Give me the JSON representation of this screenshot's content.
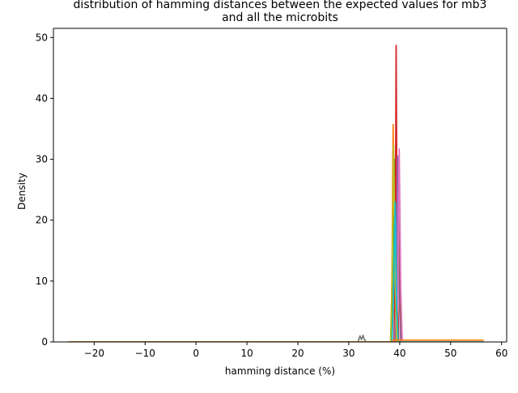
{
  "chart_data": {
    "type": "line",
    "title": "distribution of hamming distances between the expected values for mb3\nand all the microbits",
    "xlabel": "hamming distance (%)",
    "ylabel": "Density",
    "xlim": [
      -28,
      61
    ],
    "ylim": [
      0,
      51.5
    ],
    "xticks": [
      -20,
      -10,
      0,
      10,
      20,
      30,
      40,
      50,
      60
    ],
    "xtick_labels": [
      "−20",
      "−10",
      "0",
      "10",
      "20",
      "30",
      "40",
      "50",
      "60"
    ],
    "yticks": [
      0,
      10,
      20,
      30,
      40,
      50
    ],
    "ytick_labels": [
      "0",
      "10",
      "20",
      "30",
      "40",
      "50"
    ],
    "grid": false,
    "legend": "none",
    "series": [
      {
        "color": "#1f77b4",
        "x": [
          -25,
          38.3,
          38.6,
          38.9,
          39.2,
          39.5,
          56.5
        ],
        "y": [
          0,
          0,
          6,
          14,
          4,
          0,
          0
        ]
      },
      {
        "color": "#ff7f0e",
        "x": [
          -25,
          38.3,
          38.5,
          38.7,
          38.9,
          39.1,
          56.5
        ],
        "y": [
          0,
          0,
          12,
          35.7,
          14,
          0,
          0
        ]
      },
      {
        "color": "#2ca02c",
        "x": [
          -25,
          38.4,
          38.8,
          39.0,
          39.2,
          39.5,
          56.5
        ],
        "y": [
          0,
          0,
          8,
          30,
          12,
          0,
          0
        ]
      },
      {
        "color": "#d62728",
        "x": [
          -25,
          38.9,
          39.1,
          39.3,
          39.5,
          39.8,
          56.5
        ],
        "y": [
          0,
          0,
          10,
          48.7,
          10,
          0,
          0
        ]
      },
      {
        "color": "#9467bd",
        "x": [
          -25,
          39.0,
          39.3,
          39.6,
          39.9,
          40.2,
          56.5
        ],
        "y": [
          0,
          0,
          6,
          30.5,
          8,
          0,
          0
        ]
      },
      {
        "color": "#8c564b",
        "x": [
          -25,
          39.2,
          39.5,
          39.8,
          40.1,
          40.4,
          56.5
        ],
        "y": [
          0,
          0,
          4,
          24,
          5,
          0,
          0
        ]
      },
      {
        "color": "#e377c2",
        "x": [
          -25,
          39.3,
          39.6,
          39.9,
          40.2,
          40.5,
          56.5
        ],
        "y": [
          0,
          0,
          7,
          31.7,
          9,
          0,
          0
        ]
      },
      {
        "color": "#7f7f7f",
        "x": [
          -25,
          31.8,
          32.2,
          32.5,
          32.8,
          33.0,
          33.4,
          56.5
        ],
        "y": [
          0,
          0,
          1.0,
          0.4,
          1.1,
          0.5,
          0,
          0
        ]
      },
      {
        "color": "#bcbd22",
        "x": [
          -25,
          38.2,
          38.5,
          38.8,
          39.1,
          39.4,
          56.5
        ],
        "y": [
          0,
          0,
          10,
          32.3,
          12,
          0,
          0
        ]
      },
      {
        "color": "#17becf",
        "x": [
          -25,
          38.5,
          38.8,
          39.1,
          39.4,
          39.7,
          56.5
        ],
        "y": [
          0,
          0,
          8,
          23,
          6,
          0,
          0
        ]
      },
      {
        "color": "#ff7f0e",
        "x": [
          -25,
          38.5,
          38.8,
          56.5
        ],
        "y": [
          0,
          0,
          0.3,
          0.3
        ]
      }
    ]
  }
}
